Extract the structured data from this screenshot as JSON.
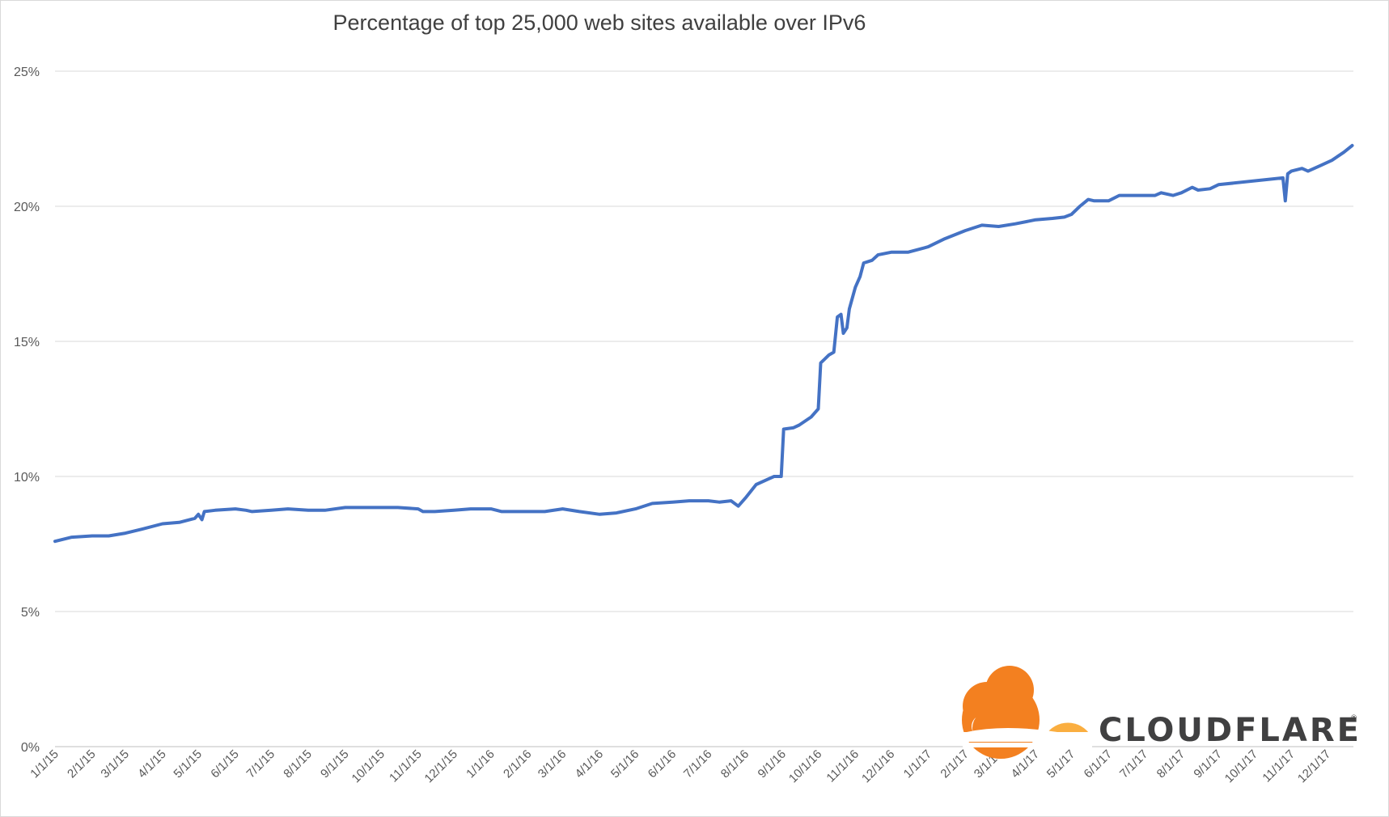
{
  "chart_data": {
    "type": "line",
    "title": "Percentage of top 25,000 web sites available over IPv6",
    "xlabel": "",
    "ylabel": "",
    "ylim": [
      0,
      25
    ],
    "y_ticks": [
      "0%",
      "5%",
      "10%",
      "15%",
      "20%",
      "25%"
    ],
    "x_tick_labels": [
      "1/1/15",
      "2/1/15",
      "3/1/15",
      "4/1/15",
      "5/1/15",
      "6/1/15",
      "7/1/15",
      "8/1/15",
      "9/1/15",
      "10/1/15",
      "11/1/15",
      "12/1/15",
      "1/1/16",
      "2/1/16",
      "3/1/16",
      "4/1/16",
      "5/1/16",
      "6/1/16",
      "7/1/16",
      "8/1/16",
      "9/1/16",
      "10/1/16",
      "11/1/16",
      "12/1/16",
      "1/1/17",
      "2/1/17",
      "3/1/17",
      "4/1/17",
      "5/1/17",
      "6/1/17",
      "7/1/17",
      "8/1/17",
      "9/1/17",
      "10/1/17",
      "11/1/17",
      "12/1/17"
    ],
    "grid": true,
    "legend": "none",
    "series": [
      {
        "color": "#4472c4",
        "points": [
          [
            "2015-01-01",
            7.6
          ],
          [
            "2015-01-15",
            7.75
          ],
          [
            "2015-02-01",
            7.8
          ],
          [
            "2015-02-15",
            7.8
          ],
          [
            "2015-03-01",
            7.9
          ],
          [
            "2015-03-15",
            8.05
          ],
          [
            "2015-04-01",
            8.25
          ],
          [
            "2015-04-15",
            8.3
          ],
          [
            "2015-04-28",
            8.45
          ],
          [
            "2015-05-01",
            8.6
          ],
          [
            "2015-05-04",
            8.4
          ],
          [
            "2015-05-06",
            8.7
          ],
          [
            "2015-05-15",
            8.75
          ],
          [
            "2015-06-01",
            8.8
          ],
          [
            "2015-06-10",
            8.75
          ],
          [
            "2015-06-15",
            8.7
          ],
          [
            "2015-07-01",
            8.75
          ],
          [
            "2015-07-15",
            8.8
          ],
          [
            "2015-08-01",
            8.75
          ],
          [
            "2015-08-15",
            8.75
          ],
          [
            "2015-09-01",
            8.85
          ],
          [
            "2015-09-15",
            8.85
          ],
          [
            "2015-10-01",
            8.85
          ],
          [
            "2015-10-15",
            8.85
          ],
          [
            "2015-11-01",
            8.8
          ],
          [
            "2015-11-05",
            8.7
          ],
          [
            "2015-11-15",
            8.7
          ],
          [
            "2015-12-01",
            8.75
          ],
          [
            "2015-12-15",
            8.8
          ],
          [
            "2016-01-01",
            8.8
          ],
          [
            "2016-01-10",
            8.7
          ],
          [
            "2016-01-20",
            8.7
          ],
          [
            "2016-02-01",
            8.7
          ],
          [
            "2016-02-15",
            8.7
          ],
          [
            "2016-03-01",
            8.8
          ],
          [
            "2016-03-15",
            8.7
          ],
          [
            "2016-04-01",
            8.6
          ],
          [
            "2016-04-15",
            8.65
          ],
          [
            "2016-05-01",
            8.8
          ],
          [
            "2016-05-15",
            9.0
          ],
          [
            "2016-06-01",
            9.05
          ],
          [
            "2016-06-15",
            9.1
          ],
          [
            "2016-07-01",
            9.1
          ],
          [
            "2016-07-10",
            9.05
          ],
          [
            "2016-07-20",
            9.1
          ],
          [
            "2016-07-26",
            8.9
          ],
          [
            "2016-08-01",
            9.2
          ],
          [
            "2016-08-10",
            9.7
          ],
          [
            "2016-08-20",
            9.9
          ],
          [
            "2016-08-25",
            10.0
          ],
          [
            "2016-08-31",
            10.0
          ],
          [
            "2016-09-02",
            11.75
          ],
          [
            "2016-09-10",
            11.8
          ],
          [
            "2016-09-15",
            11.9
          ],
          [
            "2016-09-25",
            12.2
          ],
          [
            "2016-10-01",
            12.5
          ],
          [
            "2016-10-03",
            14.2
          ],
          [
            "2016-10-10",
            14.5
          ],
          [
            "2016-10-14",
            14.6
          ],
          [
            "2016-10-17",
            15.9
          ],
          [
            "2016-10-20",
            16.0
          ],
          [
            "2016-10-22",
            15.3
          ],
          [
            "2016-10-25",
            15.5
          ],
          [
            "2016-10-27",
            16.2
          ],
          [
            "2016-11-01",
            17.0
          ],
          [
            "2016-11-05",
            17.4
          ],
          [
            "2016-11-08",
            17.9
          ],
          [
            "2016-11-15",
            18.0
          ],
          [
            "2016-11-20",
            18.2
          ],
          [
            "2016-12-01",
            18.3
          ],
          [
            "2016-12-15",
            18.3
          ],
          [
            "2017-01-01",
            18.5
          ],
          [
            "2017-01-15",
            18.8
          ],
          [
            "2017-02-01",
            19.1
          ],
          [
            "2017-02-15",
            19.3
          ],
          [
            "2017-03-01",
            19.25
          ],
          [
            "2017-03-15",
            19.35
          ],
          [
            "2017-04-01",
            19.5
          ],
          [
            "2017-04-15",
            19.55
          ],
          [
            "2017-04-25",
            19.6
          ],
          [
            "2017-05-01",
            19.7
          ],
          [
            "2017-05-08",
            20.0
          ],
          [
            "2017-05-15",
            20.25
          ],
          [
            "2017-05-20",
            20.2
          ],
          [
            "2017-06-01",
            20.2
          ],
          [
            "2017-06-10",
            20.4
          ],
          [
            "2017-06-15",
            20.4
          ],
          [
            "2017-07-01",
            20.4
          ],
          [
            "2017-07-10",
            20.4
          ],
          [
            "2017-07-15",
            20.5
          ],
          [
            "2017-07-25",
            20.4
          ],
          [
            "2017-08-01",
            20.5
          ],
          [
            "2017-08-10",
            20.7
          ],
          [
            "2017-08-15",
            20.6
          ],
          [
            "2017-08-25",
            20.65
          ],
          [
            "2017-09-01",
            20.8
          ],
          [
            "2017-10-25",
            21.05
          ],
          [
            "2017-10-27",
            20.2
          ],
          [
            "2017-10-29",
            21.2
          ],
          [
            "2017-11-01",
            21.3
          ],
          [
            "2017-11-10",
            21.4
          ],
          [
            "2017-11-15",
            21.3
          ],
          [
            "2017-11-25",
            21.5
          ],
          [
            "2017-12-05",
            21.7
          ],
          [
            "2017-12-15",
            22.0
          ],
          [
            "2017-12-22",
            22.25
          ]
        ]
      }
    ]
  },
  "branding": {
    "logo_text": "CLOUDFLARE",
    "logo_icon": "cloudflare-cloud-icon",
    "colors": {
      "orange": "#f38020",
      "light_orange": "#faae40",
      "text": "#404041"
    }
  }
}
